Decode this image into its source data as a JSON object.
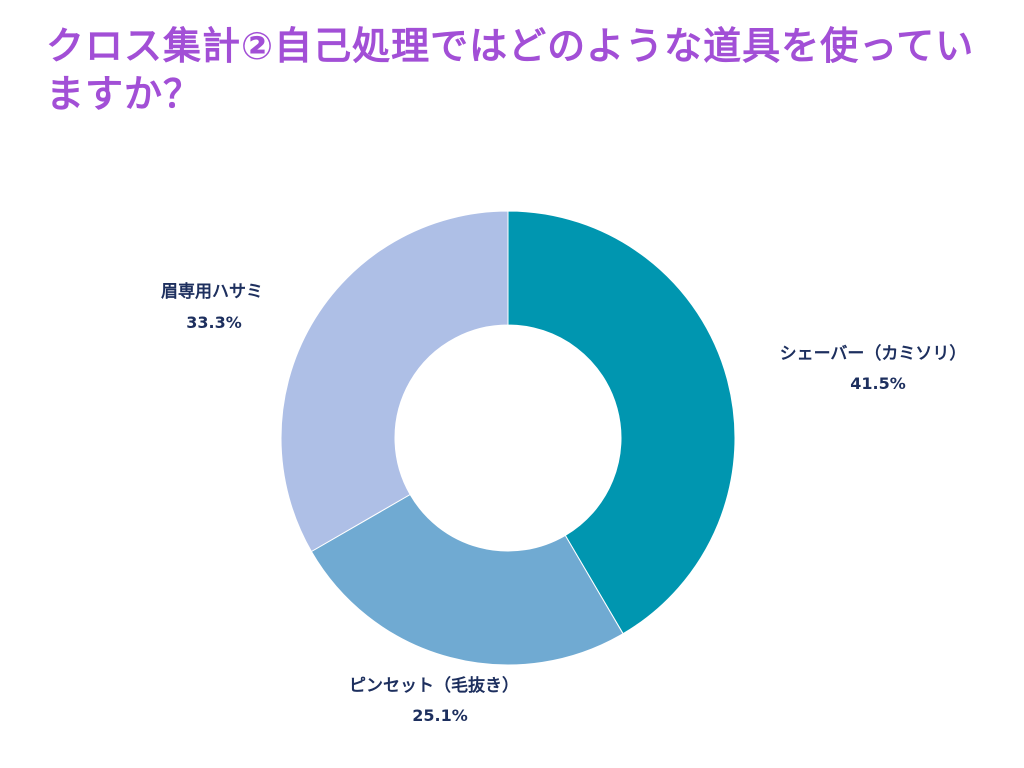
{
  "title": "クロス集計②自己処理ではどのような道具を使っていますか？",
  "chart_data": {
    "type": "pie",
    "donut": true,
    "title": "クロス集計②自己処理ではどのような道具を使っていますか？",
    "labels": [
      "シェーバー（カミソリ）",
      "ピンセット（毛抜き）",
      "眉専用ハサミ"
    ],
    "values": [
      41.5,
      25.1,
      33.3
    ],
    "value_labels": [
      "41.5%",
      "25.1%",
      "33.3%"
    ],
    "colors": [
      "#0096b0",
      "#70aad2",
      "#aebfe6"
    ],
    "legend": "none",
    "start": "top, clockwise"
  }
}
